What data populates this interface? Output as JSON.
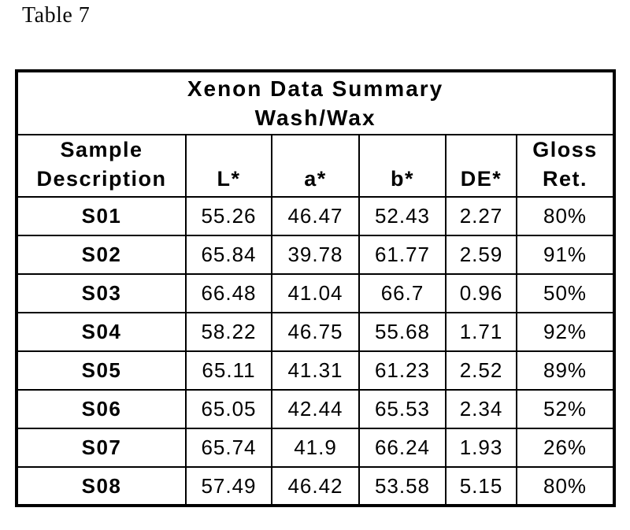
{
  "page": {
    "caption": "Table 7"
  },
  "colors": {
    "text": "#000000",
    "border": "#000000",
    "background": "#ffffff"
  },
  "table": {
    "title": {
      "line1": "Xenon Data Summary",
      "line2": "Wash/Wax"
    },
    "header": {
      "sample_line1": "Sample",
      "sample_line2": "Description",
      "l_star": "L*",
      "a_star": "a*",
      "b_star": "b*",
      "de_star": "DE*",
      "gloss_line1": "Gloss",
      "gloss_line2": "Ret."
    },
    "rows": [
      [
        "S01",
        "55.26",
        "46.47",
        "52.43",
        "2.27",
        "80%"
      ],
      [
        "S02",
        "65.84",
        "39.78",
        "61.77",
        "2.59",
        "91%"
      ],
      [
        "S03",
        "66.48",
        "41.04",
        "66.7",
        "0.96",
        "50%"
      ],
      [
        "S04",
        "58.22",
        "46.75",
        "55.68",
        "1.71",
        "92%"
      ],
      [
        "S05",
        "65.11",
        "41.31",
        "61.23",
        "2.52",
        "89%"
      ],
      [
        "S06",
        "65.05",
        "42.44",
        "65.53",
        "2.34",
        "52%"
      ],
      [
        "S07",
        "65.74",
        "41.9",
        "66.24",
        "1.93",
        "26%"
      ],
      [
        "S08",
        "57.49",
        "46.42",
        "53.58",
        "5.15",
        "80%"
      ]
    ]
  }
}
